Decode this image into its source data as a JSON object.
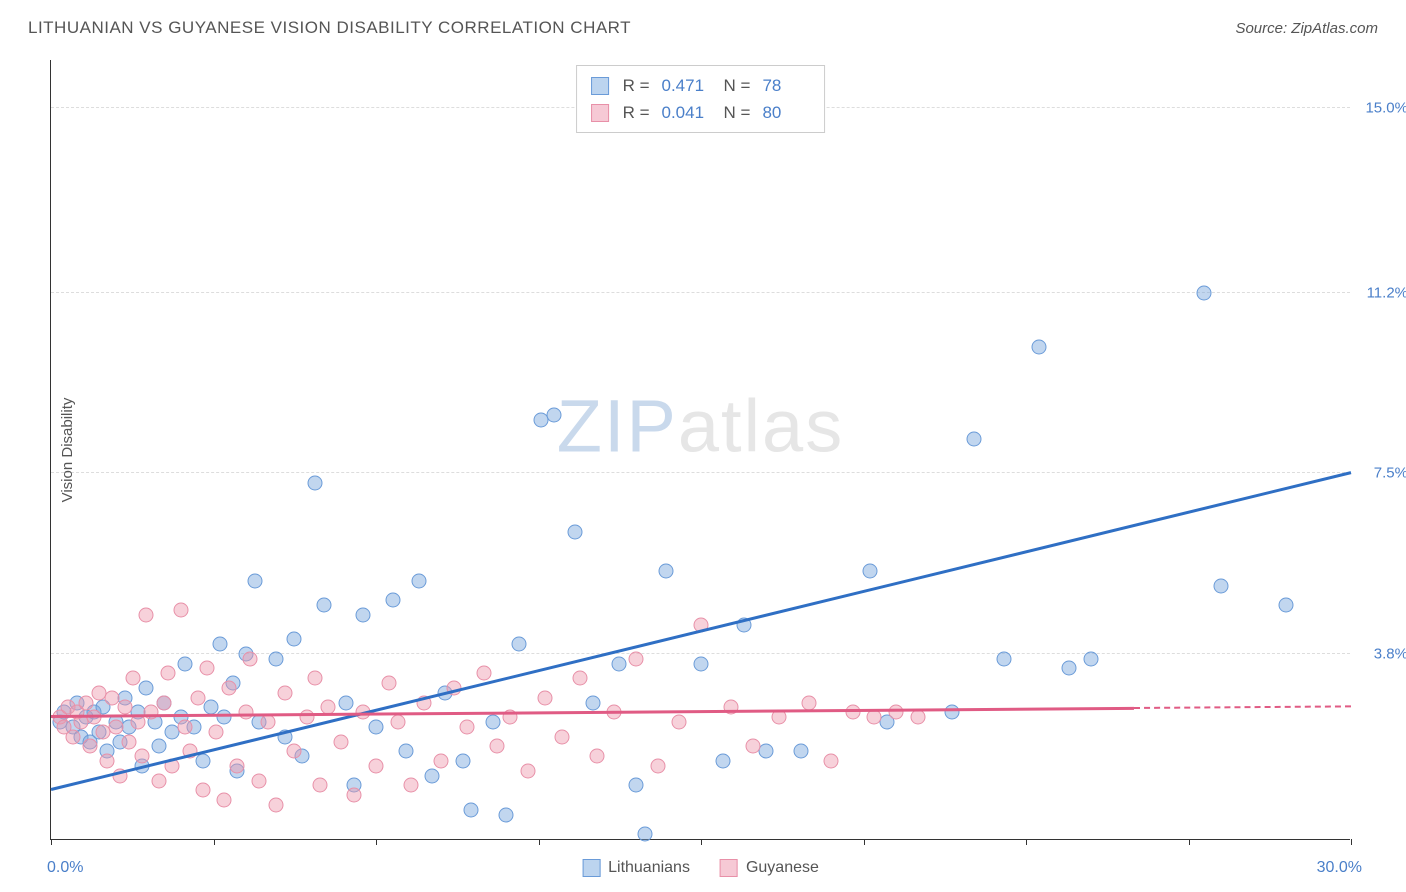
{
  "title": "LITHUANIAN VS GUYANESE VISION DISABILITY CORRELATION CHART",
  "source": "Source: ZipAtlas.com",
  "watermark_zip": "ZIP",
  "watermark_atlas": "atlas",
  "y_axis_label": "Vision Disability",
  "x_range": {
    "min_label": "0.0%",
    "max_label": "30.0%",
    "min": 0,
    "max": 30
  },
  "y_range": {
    "min": 0,
    "max": 16
  },
  "y_ticks": [
    {
      "value": 3.8,
      "label": "3.8%"
    },
    {
      "value": 7.5,
      "label": "7.5%"
    },
    {
      "value": 11.2,
      "label": "11.2%"
    },
    {
      "value": 15.0,
      "label": "15.0%"
    }
  ],
  "x_tick_values": [
    0,
    3.75,
    7.5,
    11.25,
    15,
    18.75,
    22.5,
    26.25,
    30
  ],
  "series": [
    {
      "name": "Lithuanians",
      "color_fill": "rgba(118,164,219,0.45)",
      "color_stroke": "#6a9bd8",
      "swatch_fill": "#bcd4ef",
      "swatch_border": "#6a9bd8",
      "R": "0.471",
      "N": "78",
      "trend": {
        "x1": 0,
        "y1": 1.0,
        "x2": 30,
        "y2": 7.5,
        "color": "#2f6fc4",
        "dashed_after_x": null
      },
      "points": [
        [
          0.2,
          2.4
        ],
        [
          0.3,
          2.6
        ],
        [
          0.5,
          2.3
        ],
        [
          0.6,
          2.8
        ],
        [
          0.7,
          2.1
        ],
        [
          0.8,
          2.5
        ],
        [
          0.9,
          2.0
        ],
        [
          1.0,
          2.6
        ],
        [
          1.1,
          2.2
        ],
        [
          1.2,
          2.7
        ],
        [
          1.3,
          1.8
        ],
        [
          1.5,
          2.4
        ],
        [
          1.6,
          2.0
        ],
        [
          1.7,
          2.9
        ],
        [
          1.8,
          2.3
        ],
        [
          2.0,
          2.6
        ],
        [
          2.1,
          1.5
        ],
        [
          2.2,
          3.1
        ],
        [
          2.4,
          2.4
        ],
        [
          2.5,
          1.9
        ],
        [
          2.6,
          2.8
        ],
        [
          2.8,
          2.2
        ],
        [
          3.0,
          2.5
        ],
        [
          3.1,
          3.6
        ],
        [
          3.3,
          2.3
        ],
        [
          3.5,
          1.6
        ],
        [
          3.7,
          2.7
        ],
        [
          3.9,
          4.0
        ],
        [
          4.0,
          2.5
        ],
        [
          4.2,
          3.2
        ],
        [
          4.3,
          1.4
        ],
        [
          4.5,
          3.8
        ],
        [
          4.7,
          5.3
        ],
        [
          4.8,
          2.4
        ],
        [
          5.2,
          3.7
        ],
        [
          5.4,
          2.1
        ],
        [
          5.6,
          4.1
        ],
        [
          5.8,
          1.7
        ],
        [
          6.1,
          7.3
        ],
        [
          6.3,
          4.8
        ],
        [
          6.8,
          2.8
        ],
        [
          7.0,
          1.1
        ],
        [
          7.2,
          4.6
        ],
        [
          7.5,
          2.3
        ],
        [
          7.9,
          4.9
        ],
        [
          8.2,
          1.8
        ],
        [
          8.5,
          5.3
        ],
        [
          8.8,
          1.3
        ],
        [
          9.1,
          3.0
        ],
        [
          9.5,
          1.6
        ],
        [
          9.7,
          0.6
        ],
        [
          10.2,
          2.4
        ],
        [
          10.5,
          0.5
        ],
        [
          10.8,
          4.0
        ],
        [
          11.3,
          8.6
        ],
        [
          11.6,
          8.7
        ],
        [
          12.1,
          6.3
        ],
        [
          12.5,
          2.8
        ],
        [
          13.1,
          3.6
        ],
        [
          13.5,
          1.1
        ],
        [
          13.7,
          0.1
        ],
        [
          14.2,
          5.5
        ],
        [
          15.0,
          3.6
        ],
        [
          15.5,
          1.6
        ],
        [
          16.0,
          4.4
        ],
        [
          16.5,
          1.8
        ],
        [
          17.3,
          1.8
        ],
        [
          18.9,
          5.5
        ],
        [
          19.3,
          2.4
        ],
        [
          20.8,
          2.6
        ],
        [
          21.3,
          8.2
        ],
        [
          22.0,
          3.7
        ],
        [
          22.8,
          10.1
        ],
        [
          23.5,
          3.5
        ],
        [
          24.0,
          3.7
        ],
        [
          26.6,
          11.2
        ],
        [
          27.0,
          5.2
        ],
        [
          28.5,
          4.8
        ]
      ]
    },
    {
      "name": "Guyanese",
      "color_fill": "rgba(238,152,173,0.45)",
      "color_stroke": "#e890a8",
      "swatch_fill": "#f6c9d5",
      "swatch_border": "#e890a8",
      "R": "0.041",
      "N": "80",
      "trend": {
        "x1": 0,
        "y1": 2.5,
        "x2": 30,
        "y2": 2.7,
        "color": "#e05b84",
        "dashed_after_x": 25
      },
      "points": [
        [
          0.2,
          2.5
        ],
        [
          0.3,
          2.3
        ],
        [
          0.4,
          2.7
        ],
        [
          0.5,
          2.1
        ],
        [
          0.6,
          2.6
        ],
        [
          0.7,
          2.4
        ],
        [
          0.8,
          2.8
        ],
        [
          0.9,
          1.9
        ],
        [
          1.0,
          2.5
        ],
        [
          1.1,
          3.0
        ],
        [
          1.2,
          2.2
        ],
        [
          1.3,
          1.6
        ],
        [
          1.4,
          2.9
        ],
        [
          1.5,
          2.3
        ],
        [
          1.6,
          1.3
        ],
        [
          1.7,
          2.7
        ],
        [
          1.8,
          2.0
        ],
        [
          1.9,
          3.3
        ],
        [
          2.0,
          2.4
        ],
        [
          2.1,
          1.7
        ],
        [
          2.2,
          4.6
        ],
        [
          2.3,
          2.6
        ],
        [
          2.5,
          1.2
        ],
        [
          2.6,
          2.8
        ],
        [
          2.7,
          3.4
        ],
        [
          2.8,
          1.5
        ],
        [
          3.0,
          4.7
        ],
        [
          3.1,
          2.3
        ],
        [
          3.2,
          1.8
        ],
        [
          3.4,
          2.9
        ],
        [
          3.5,
          1.0
        ],
        [
          3.6,
          3.5
        ],
        [
          3.8,
          2.2
        ],
        [
          4.0,
          0.8
        ],
        [
          4.1,
          3.1
        ],
        [
          4.3,
          1.5
        ],
        [
          4.5,
          2.6
        ],
        [
          4.6,
          3.7
        ],
        [
          4.8,
          1.2
        ],
        [
          5.0,
          2.4
        ],
        [
          5.2,
          0.7
        ],
        [
          5.4,
          3.0
        ],
        [
          5.6,
          1.8
        ],
        [
          5.9,
          2.5
        ],
        [
          6.1,
          3.3
        ],
        [
          6.2,
          1.1
        ],
        [
          6.4,
          2.7
        ],
        [
          6.7,
          2.0
        ],
        [
          7.0,
          0.9
        ],
        [
          7.2,
          2.6
        ],
        [
          7.5,
          1.5
        ],
        [
          7.8,
          3.2
        ],
        [
          8.0,
          2.4
        ],
        [
          8.3,
          1.1
        ],
        [
          8.6,
          2.8
        ],
        [
          9.0,
          1.6
        ],
        [
          9.3,
          3.1
        ],
        [
          9.6,
          2.3
        ],
        [
          10.0,
          3.4
        ],
        [
          10.3,
          1.9
        ],
        [
          10.6,
          2.5
        ],
        [
          11.0,
          1.4
        ],
        [
          11.4,
          2.9
        ],
        [
          11.8,
          2.1
        ],
        [
          12.2,
          3.3
        ],
        [
          12.6,
          1.7
        ],
        [
          13.0,
          2.6
        ],
        [
          13.5,
          3.7
        ],
        [
          14.0,
          1.5
        ],
        [
          14.5,
          2.4
        ],
        [
          15.0,
          4.4
        ],
        [
          15.7,
          2.7
        ],
        [
          16.2,
          1.9
        ],
        [
          16.8,
          2.5
        ],
        [
          17.5,
          2.8
        ],
        [
          18.0,
          1.6
        ],
        [
          18.5,
          2.6
        ],
        [
          19.0,
          2.5
        ],
        [
          19.5,
          2.6
        ],
        [
          20.0,
          2.5
        ]
      ]
    }
  ]
}
